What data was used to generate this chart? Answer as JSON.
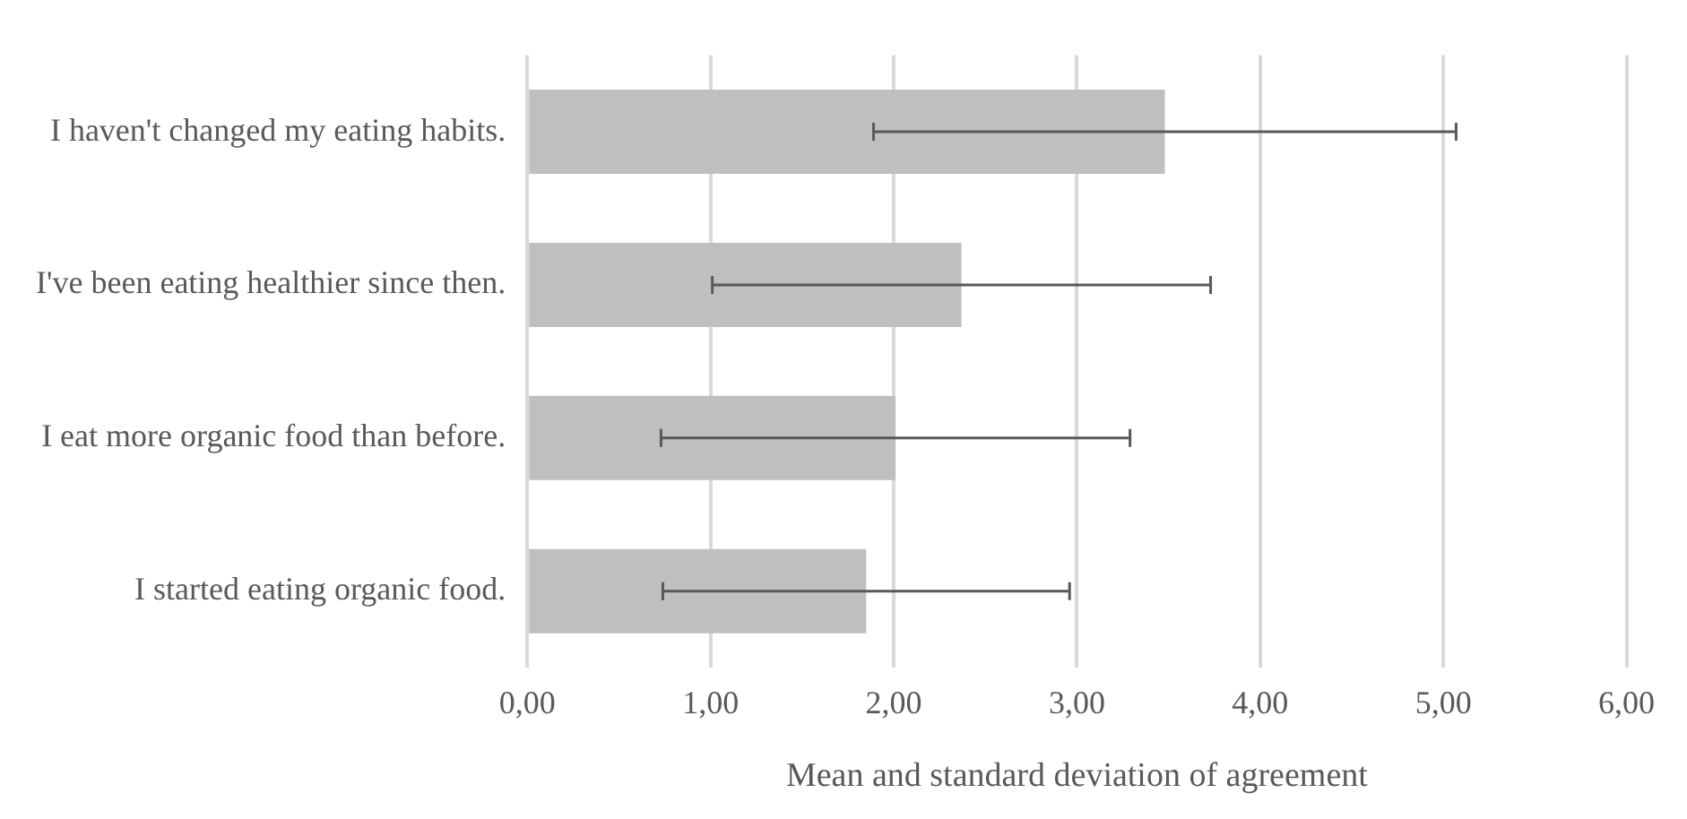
{
  "chart_data": {
    "type": "bar",
    "orientation": "horizontal",
    "xlabel": "Mean and standard deviation of agreement",
    "categories": [
      "I haven't changed my eating habits.",
      "I've been eating healthier since then.",
      "I eat more organic food than before.",
      "I started eating organic food."
    ],
    "values": [
      3.48,
      2.37,
      2.01,
      1.85
    ],
    "errors": [
      1.59,
      1.36,
      1.28,
      1.11
    ],
    "color": "#bfbfbf",
    "xlim": [
      0,
      6
    ],
    "xticks": [
      {
        "value": 0,
        "label": "0,00"
      },
      {
        "value": 1,
        "label": "1,00"
      },
      {
        "value": 2,
        "label": "2,00"
      },
      {
        "value": 3,
        "label": "3,00"
      },
      {
        "value": 4,
        "label": "4,00"
      },
      {
        "value": 5,
        "label": "5,00"
      },
      {
        "value": 6,
        "label": "6,00"
      }
    ],
    "grid": "x",
    "legend": false
  }
}
